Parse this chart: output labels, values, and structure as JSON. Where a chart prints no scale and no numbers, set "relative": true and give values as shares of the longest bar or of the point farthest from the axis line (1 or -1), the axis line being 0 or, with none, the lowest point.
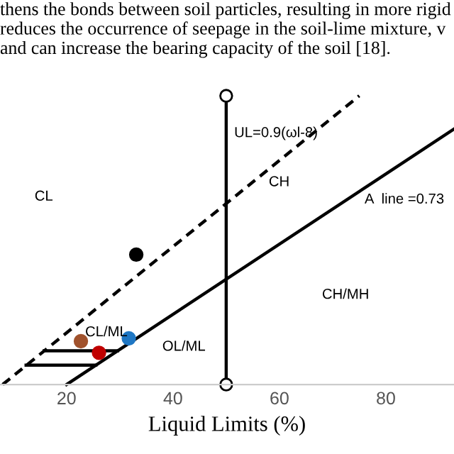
{
  "chart_data": {
    "type": "scatter",
    "relative": true,
    "xlabel": "Liquid Limits (%)",
    "xlim": [
      7.5,
      92.8
    ],
    "xticks": [
      20,
      40,
      60,
      80
    ],
    "legend": false,
    "grid": false,
    "series": [
      {
        "type": "line",
        "color": "#000000",
        "line_style": "dashed",
        "marker": "none",
        "x": [
          8,
          75
        ],
        "values": [
          0,
          1.0
        ]
      },
      {
        "type": "line",
        "color": "#000000",
        "line_style": "solid",
        "marker": "none",
        "x": [
          20,
          92.8
        ],
        "values": [
          0,
          0.885
        ]
      },
      {
        "type": "line",
        "color": "#000000",
        "line_style": "solid",
        "marker": "circle",
        "x": [
          50,
          50
        ],
        "values": [
          0,
          1.0
        ]
      },
      {
        "type": "line",
        "color": "#000000",
        "line_style": "solid",
        "marker": "none",
        "x": [
          15.8,
          29.6
        ],
        "values": [
          0.117,
          0.117
        ]
      },
      {
        "type": "line",
        "color": "#000000",
        "line_style": "solid",
        "marker": "none",
        "x": [
          12.4,
          25.5
        ],
        "values": [
          0.067,
          0.067
        ]
      },
      {
        "color": "#000000",
        "marker": "circle",
        "x": [
          33.1
        ],
        "values": [
          0.45
        ]
      },
      {
        "color": "#c00000",
        "marker": "circle",
        "x": [
          26.1
        ],
        "values": [
          0.11
        ]
      },
      {
        "color": "#1f77c4",
        "marker": "circle",
        "x": [
          31.7
        ],
        "values": [
          0.16
        ]
      },
      {
        "color": "#a0522d",
        "marker": "circle",
        "x": [
          22.7
        ],
        "values": [
          0.15
        ]
      }
    ],
    "annotations": [
      "thens the bonds between soil particles, resulting in more rigid\nreduces the occurrence of seepage in the soil-lime mixture, v\nand can increase the bearing capacity of the soil [18].",
      "UL=0.9(ωl-8)",
      "CH",
      "A  line =0.73",
      "CL",
      "CH/MH",
      "CL/ML",
      "OL/ML"
    ]
  }
}
